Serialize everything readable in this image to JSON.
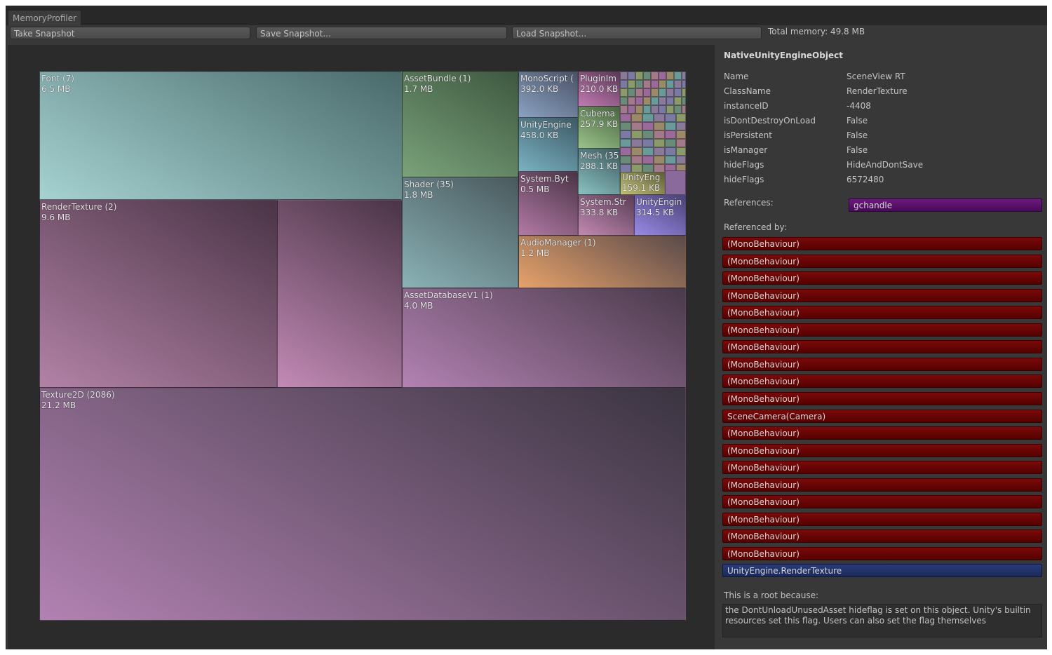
{
  "window": {
    "tab": "MemoryProfiler"
  },
  "toolbar": {
    "buttons": [
      "Take Snapshot",
      "Save Snapshot...",
      "Load Snapshot..."
    ],
    "total_memory": "Total memory: 49.8 MB"
  },
  "treemap": {
    "cells": [
      {
        "name": "Font (7)",
        "size": "6.5 MB"
      },
      {
        "name": "RenderTexture (2)",
        "size": "9.6 MB"
      },
      {
        "name": "AssetBundle (1)",
        "size": "1.7 MB"
      },
      {
        "name": "Shader (35)",
        "size": "1.8 MB"
      },
      {
        "name": "MonoScript (",
        "size": "392.0 KB"
      },
      {
        "name": "UnityEngine",
        "size": "458.0 KB"
      },
      {
        "name": "System.Byt",
        "size": "0.5 MB"
      },
      {
        "name": "PluginIm",
        "size": "210.0 KB"
      },
      {
        "name": "Cubema",
        "size": "257.9 KB"
      },
      {
        "name": "Mesh (35",
        "size": "288.1 KB"
      },
      {
        "name": "UnityEng",
        "size": "159.1 KB"
      },
      {
        "name": "System.Str",
        "size": "333.8 KB"
      },
      {
        "name": "UnityEngin",
        "size": "314.5 KB"
      },
      {
        "name": "AudioManager (1)",
        "size": "1.2 MB"
      },
      {
        "name": "AssetDatabaseV1 (1)",
        "size": "4.0 MB"
      },
      {
        "name": "Texture2D (2086)",
        "size": "21.2 MB"
      }
    ]
  },
  "inspector": {
    "title": "NativeUnityEngineObject",
    "fields": [
      [
        "Name",
        "SceneView RT"
      ],
      [
        "ClassName",
        "RenderTexture"
      ],
      [
        "instanceID",
        "-4408"
      ],
      [
        "isDontDestroyOnLoad",
        "False"
      ],
      [
        "isPersistent",
        "False"
      ],
      [
        "isManager",
        "False"
      ],
      [
        "hideFlags",
        "HideAndDontSave"
      ],
      [
        "hideFlags",
        "6572480"
      ]
    ],
    "references_label": "References:",
    "references": [
      "gchandle"
    ],
    "referenced_by_label": "Referenced by:",
    "referenced_by": [
      "(MonoBehaviour)",
      "(MonoBehaviour)",
      "(MonoBehaviour)",
      "(MonoBehaviour)",
      "(MonoBehaviour)",
      "(MonoBehaviour)",
      "(MonoBehaviour)",
      "(MonoBehaviour)",
      "(MonoBehaviour)",
      "(MonoBehaviour)",
      "SceneCamera(Camera)",
      "(MonoBehaviour)",
      "(MonoBehaviour)",
      "(MonoBehaviour)",
      "(MonoBehaviour)",
      "(MonoBehaviour)",
      "(MonoBehaviour)",
      "(MonoBehaviour)",
      "(MonoBehaviour)",
      "UnityEngine.RenderTexture"
    ],
    "root_label": "This is a root because:",
    "root_reason": "the DontUnloadUnusedAsset hideflag is set on this object. Unity's builtin resources set this flag. Users can also set the flag themselves"
  }
}
